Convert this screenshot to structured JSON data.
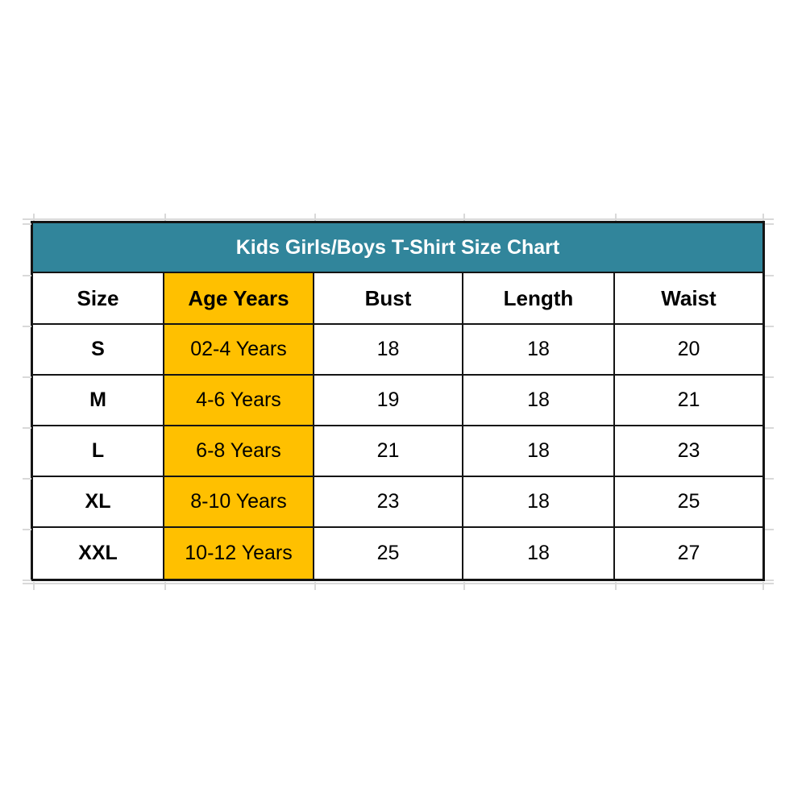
{
  "table": {
    "title": "Kids Girls/Boys T-Shirt Size Chart",
    "colors": {
      "title_bg": "#31859B",
      "title_text": "#FFFFFF",
      "highlight_bg": "#FFC000",
      "border": "#141414",
      "text": "#000000",
      "gridline": "#D9D9D9"
    },
    "columns": [
      {
        "key": "size",
        "label": "Size",
        "highlight": false
      },
      {
        "key": "age",
        "label": "Age Years",
        "highlight": true
      },
      {
        "key": "bust",
        "label": "Bust",
        "highlight": false
      },
      {
        "key": "length",
        "label": "Length",
        "highlight": false
      },
      {
        "key": "waist",
        "label": "Waist",
        "highlight": false
      }
    ],
    "rows": [
      {
        "size": "S",
        "age": "02-4 Years",
        "bust": "18",
        "length": "18",
        "waist": "20"
      },
      {
        "size": "M",
        "age": "4-6 Years",
        "bust": "19",
        "length": "18",
        "waist": "21"
      },
      {
        "size": "L",
        "age": "6-8 Years",
        "bust": "21",
        "length": "18",
        "waist": "23"
      },
      {
        "size": "XL",
        "age": "8-10 Years",
        "bust": "23",
        "length": "18",
        "waist": "25"
      },
      {
        "size": "XXL",
        "age": "10-12 Years",
        "bust": "25",
        "length": "18",
        "waist": "27"
      }
    ]
  },
  "chart_data": {
    "type": "table",
    "title": "Kids Girls/Boys T-Shirt Size Chart",
    "columns": [
      "Size",
      "Age Years",
      "Bust",
      "Length",
      "Waist"
    ],
    "rows": [
      [
        "S",
        "02-4 Years",
        18,
        18,
        20
      ],
      [
        "M",
        "4-6 Years",
        19,
        18,
        21
      ],
      [
        "L",
        "6-8 Years",
        21,
        18,
        23
      ],
      [
        "XL",
        "8-10 Years",
        23,
        18,
        25
      ],
      [
        "XXL",
        "10-12 Years",
        25,
        18,
        27
      ]
    ],
    "layout_hints": {
      "title_row_bg": "#31859B",
      "highlighted_column": "Age Years",
      "highlighted_column_bg": "#FFC000",
      "grid": true
    }
  }
}
